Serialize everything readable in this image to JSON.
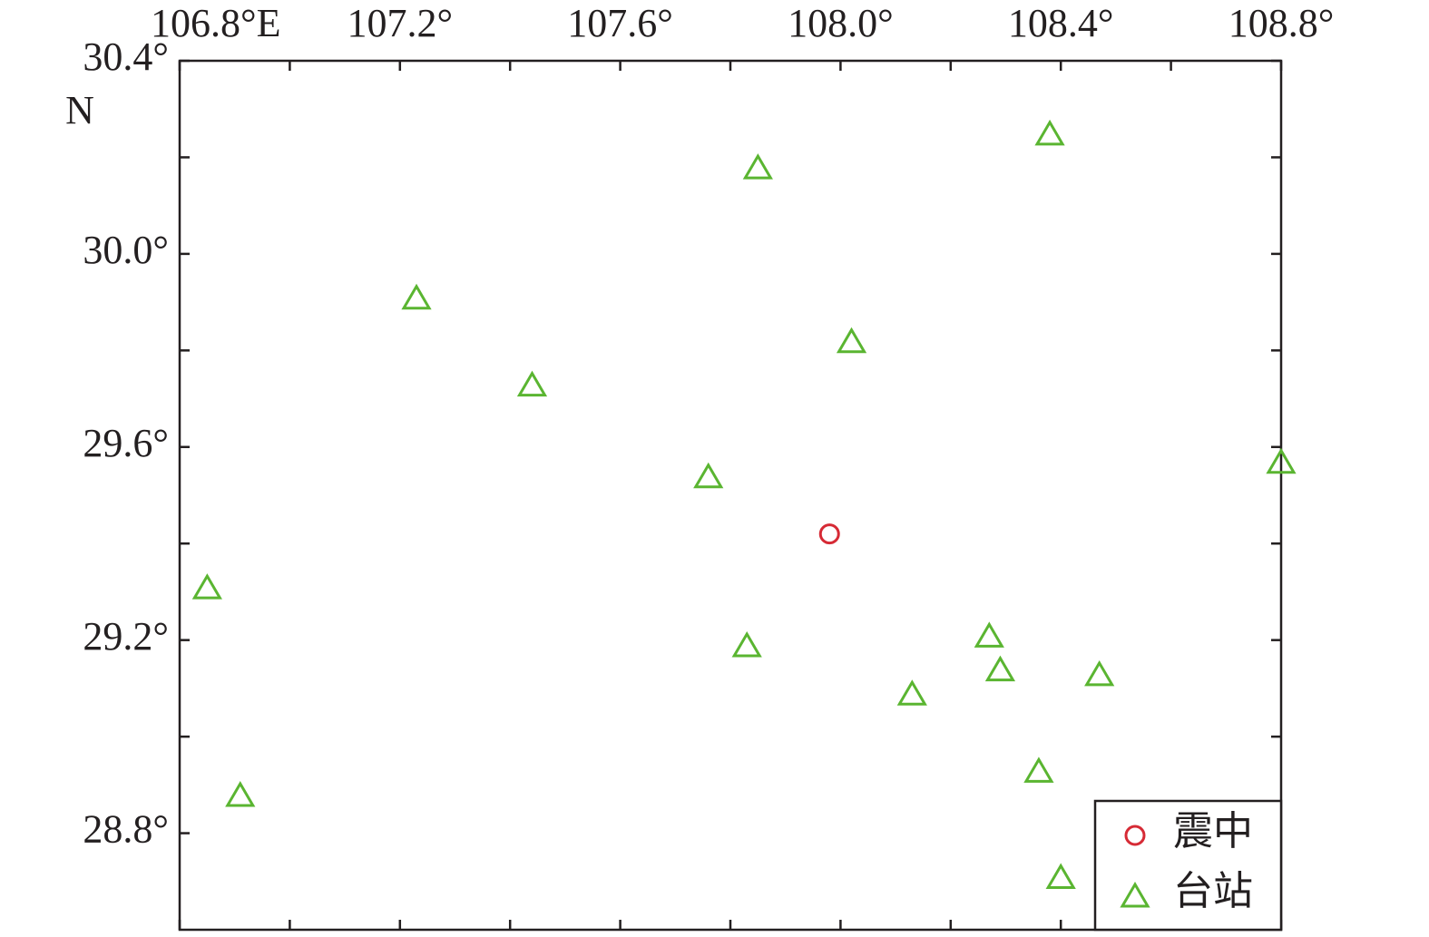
{
  "chart_data": {
    "type": "scatter",
    "xlim": [
      106.8,
      108.8
    ],
    "xticks": [
      {
        "value": 106.8,
        "label": "106.8°E"
      },
      {
        "value": 107.2,
        "label": "107.2°"
      },
      {
        "value": 107.6,
        "label": "107.6°"
      },
      {
        "value": 108.0,
        "label": "108.0°"
      },
      {
        "value": 108.4,
        "label": "108.4°"
      },
      {
        "value": 108.8,
        "label": "108.8°"
      }
    ],
    "xminorticks": [
      107.0,
      107.4,
      107.8,
      108.2,
      108.6
    ],
    "ylim": [
      28.6,
      30.4
    ],
    "yticks": [
      {
        "value": 28.8,
        "label": "28.8°"
      },
      {
        "value": 29.2,
        "label": "29.2°"
      },
      {
        "value": 29.6,
        "label": "29.6°"
      },
      {
        "value": 30.0,
        "label": "30.0°"
      },
      {
        "value": 30.4,
        "label": "30.4°"
      }
    ],
    "yminorticks": [
      29.0,
      29.4,
      29.8,
      30.2
    ],
    "y_label": "N",
    "legend": "lower right",
    "series": [
      {
        "name": "震中",
        "color": "#d62a35",
        "marker": "circle",
        "x": [
          107.98
        ],
        "values": [
          29.42
        ]
      },
      {
        "name": "台站",
        "color": "#5ab531",
        "marker": "triangle",
        "x": [
          107.85,
          108.38,
          107.23,
          108.02,
          107.44,
          107.76,
          108.8,
          106.85,
          107.83,
          108.27,
          108.29,
          108.47,
          108.13,
          108.36,
          106.91,
          108.4
        ],
        "values": [
          30.18,
          30.25,
          29.91,
          29.82,
          29.73,
          29.54,
          29.57,
          29.31,
          29.19,
          29.21,
          29.14,
          29.13,
          29.09,
          28.93,
          28.88,
          28.71
        ]
      }
    ]
  }
}
